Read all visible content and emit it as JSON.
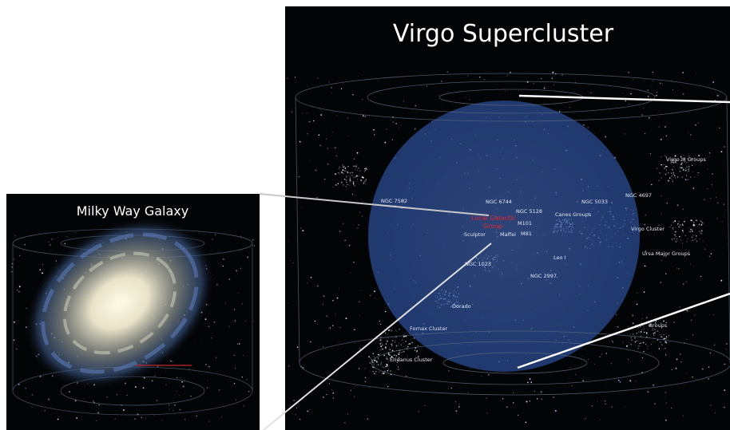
{
  "left_panel": {
    "title": "Milky Way Galaxy"
  },
  "right_panel": {
    "title": "Virgo Supercluster",
    "labels": [
      "NGC 7582",
      "NGC 6744",
      "NGC 5128",
      "NGC 5033",
      "NGC 4697",
      "Virgo III Groups",
      "Local Galactic",
      "Group",
      "Canes Groups",
      "M101",
      "Sculptor",
      "Maffei",
      "M81",
      "Virgo Cluster",
      "Ursa Major Groups",
      "Leo I",
      "NGC 1023",
      "NGC 2997",
      "Dorado",
      "Fornax Cluster",
      "Eridanus Cluster",
      "Groups"
    ]
  }
}
